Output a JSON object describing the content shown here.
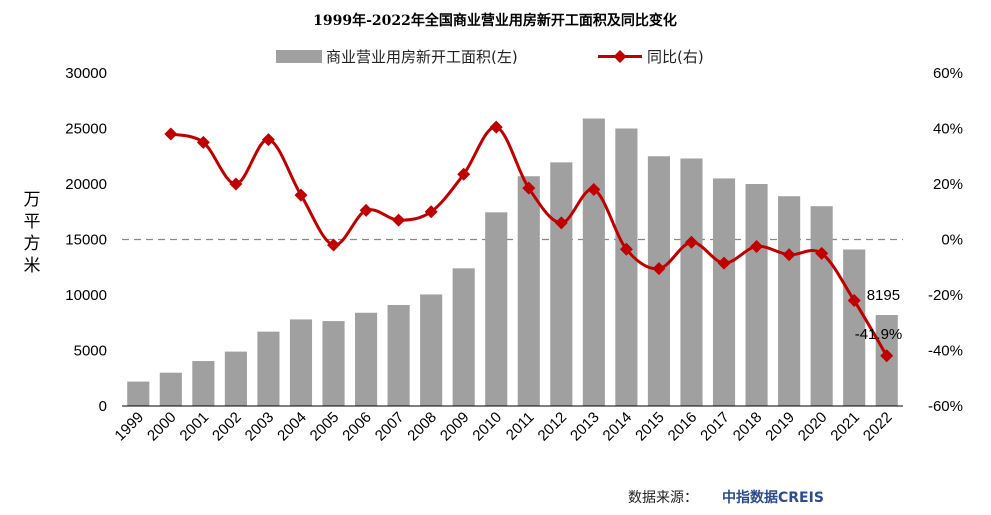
{
  "chart_data": {
    "type": "bar",
    "title": "1999年-2022年全国商业营业用房新开工面积及同比变化",
    "categories": [
      "1999",
      "2000",
      "2001",
      "2002",
      "2003",
      "2004",
      "2005",
      "2006",
      "2007",
      "2008",
      "2009",
      "2010",
      "2011",
      "2012",
      "2013",
      "2014",
      "2015",
      "2016",
      "2017",
      "2018",
      "2019",
      "2020",
      "2021",
      "2022"
    ],
    "series": [
      {
        "name": "商业营业用房新开工面积(左)",
        "type": "bar",
        "axis": "left",
        "color": "#a0a0a0",
        "values": [
          2200,
          3000,
          4050,
          4900,
          6700,
          7800,
          7650,
          8400,
          9100,
          10050,
          12400,
          17450,
          20700,
          21950,
          25900,
          25000,
          22500,
          22300,
          20500,
          20000,
          18900,
          18000,
          14100,
          8195
        ]
      },
      {
        "name": "同比(右)",
        "type": "line",
        "axis": "right",
        "color": "#c00000",
        "values": [
          null,
          38.0,
          35.0,
          20.0,
          36.0,
          16.0,
          -2.0,
          10.5,
          7.0,
          10.0,
          23.5,
          40.5,
          18.5,
          6.0,
          18.0,
          -3.5,
          -10.5,
          -1.0,
          -8.5,
          -2.5,
          -5.5,
          -5.0,
          -22.0,
          -41.9
        ]
      }
    ],
    "ylabel": "万平方米",
    "yleft_lim": [
      0,
      30000
    ],
    "yleft_ticks": [
      "0",
      "5000",
      "10000",
      "15000",
      "20000",
      "25000",
      "30000"
    ],
    "yright_lim": [
      -60,
      60
    ],
    "yright_ticks": [
      "-60%",
      "-40%",
      "-20%",
      "0%",
      "20%",
      "40%",
      "60%"
    ],
    "zero_line_color": "#888888",
    "annotations": [
      "8195",
      "-41.9%"
    ],
    "legend_position": "top-center"
  },
  "source": {
    "label": "数据来源：",
    "brand": "中指数据CREIS"
  }
}
